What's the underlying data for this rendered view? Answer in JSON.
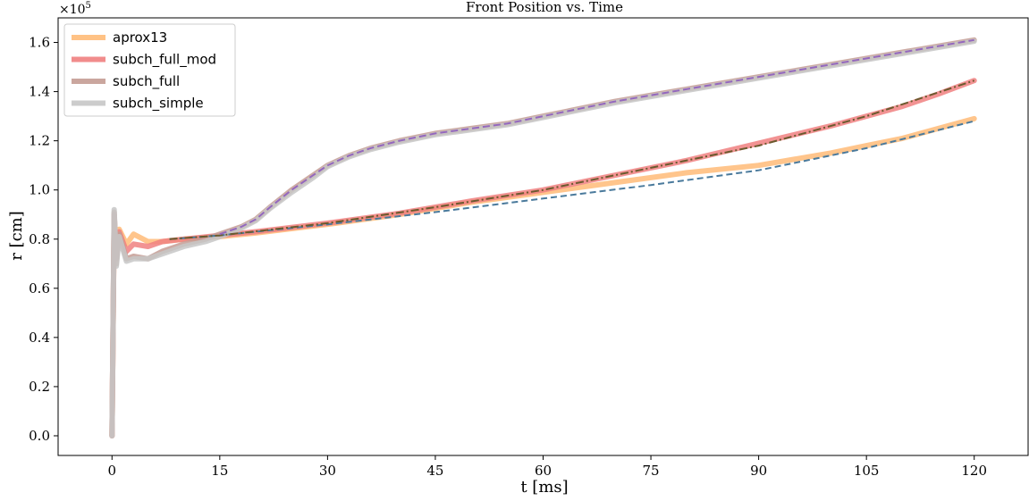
{
  "chart_data": {
    "type": "line",
    "title": "Front Position vs. Time",
    "xlabel": "t [ms]",
    "ylabel": "r [cm]",
    "y_multiplier_label": "×10",
    "y_multiplier_exp": "5",
    "xlim": [
      -7.5,
      127.5
    ],
    "ylim": [
      -0.08,
      1.7
    ],
    "x_ticks": [
      0,
      15,
      30,
      45,
      60,
      75,
      90,
      105,
      120
    ],
    "x_tick_labels": [
      "0",
      "15",
      "30",
      "45",
      "60",
      "75",
      "90",
      "105",
      "120"
    ],
    "y_ticks": [
      0.0,
      0.2,
      0.4,
      0.6,
      0.8,
      1.0,
      1.2,
      1.4,
      1.6
    ],
    "y_tick_labels": [
      "0.0",
      "0.2",
      "0.4",
      "0.6",
      "0.8",
      "1.0",
      "1.2",
      "1.4",
      "1.6"
    ],
    "grid": false,
    "legend_position": "top-left",
    "series": [
      {
        "name": "aprox13",
        "color": "#ffbb78",
        "x": [
          0,
          0.3,
          0.6,
          1,
          2,
          3,
          5,
          7,
          10,
          15,
          20,
          30,
          40,
          50,
          60,
          70,
          80,
          90,
          100,
          105,
          110,
          115,
          120
        ],
        "y": [
          0.0,
          0.88,
          0.76,
          0.84,
          0.78,
          0.82,
          0.79,
          0.79,
          0.8,
          0.81,
          0.825,
          0.86,
          0.9,
          0.95,
          0.99,
          1.03,
          1.07,
          1.1,
          1.15,
          1.18,
          1.21,
          1.25,
          1.29
        ]
      },
      {
        "name": "subch_full_mod",
        "color": "#f08080",
        "x": [
          0,
          0.3,
          0.6,
          1,
          2,
          3,
          5,
          7,
          10,
          15,
          20,
          30,
          40,
          50,
          60,
          70,
          80,
          90,
          100,
          105,
          110,
          115,
          120
        ],
        "y": [
          0.0,
          0.9,
          0.72,
          0.83,
          0.75,
          0.78,
          0.77,
          0.79,
          0.8,
          0.815,
          0.83,
          0.865,
          0.905,
          0.955,
          1.0,
          1.06,
          1.12,
          1.19,
          1.26,
          1.3,
          1.34,
          1.39,
          1.445
        ]
      },
      {
        "name": "subch_full",
        "color": "#c49c94",
        "x": [
          0,
          0.3,
          0.6,
          1,
          2,
          3,
          5,
          7,
          10,
          13,
          15,
          18,
          20,
          22,
          25,
          28,
          30,
          33,
          36,
          40,
          45,
          50,
          55,
          60,
          70,
          80,
          90,
          100,
          110,
          120
        ],
        "y": [
          0.0,
          0.91,
          0.7,
          0.82,
          0.72,
          0.73,
          0.72,
          0.75,
          0.78,
          0.8,
          0.82,
          0.85,
          0.88,
          0.93,
          1.0,
          1.06,
          1.1,
          1.14,
          1.17,
          1.2,
          1.23,
          1.25,
          1.27,
          1.3,
          1.36,
          1.41,
          1.46,
          1.51,
          1.56,
          1.61
        ]
      },
      {
        "name": "subch_simple",
        "color": "#c7c7c7",
        "x": [
          0,
          0.3,
          0.6,
          1,
          2,
          3,
          5,
          7,
          10,
          13,
          15,
          18,
          20,
          22,
          25,
          28,
          30,
          33,
          36,
          40,
          45,
          50,
          55,
          60,
          70,
          80,
          90,
          100,
          110,
          120
        ],
        "y": [
          0.0,
          0.92,
          0.69,
          0.81,
          0.71,
          0.72,
          0.72,
          0.74,
          0.77,
          0.79,
          0.81,
          0.845,
          0.875,
          0.925,
          0.99,
          1.05,
          1.095,
          1.135,
          1.165,
          1.195,
          1.225,
          1.245,
          1.265,
          1.295,
          1.355,
          1.405,
          1.455,
          1.505,
          1.555,
          1.605
        ]
      }
    ],
    "fit_lines": [
      {
        "color": "#4a7a9c",
        "dash": "7,4",
        "x": [
          8,
          15,
          30,
          45,
          60,
          75,
          90,
          105,
          120
        ],
        "y": [
          0.8,
          0.815,
          0.86,
          0.91,
          0.965,
          1.02,
          1.08,
          1.17,
          1.28
        ]
      },
      {
        "color": "#6b5a2e",
        "dash": "9,3,2,3",
        "x": [
          8,
          15,
          30,
          45,
          60,
          75,
          90,
          105,
          120
        ],
        "y": [
          0.8,
          0.815,
          0.865,
          0.93,
          1.0,
          1.09,
          1.18,
          1.3,
          1.445
        ]
      },
      {
        "color": "#9467bd",
        "dash": "8,4",
        "x": [
          15,
          18,
          20,
          22,
          25,
          28,
          30,
          33,
          36,
          40,
          45,
          50,
          55,
          60,
          70,
          80,
          90,
          100,
          110,
          120
        ],
        "y": [
          0.82,
          0.85,
          0.88,
          0.93,
          1.0,
          1.06,
          1.1,
          1.14,
          1.17,
          1.2,
          1.23,
          1.25,
          1.27,
          1.3,
          1.36,
          1.41,
          1.46,
          1.51,
          1.56,
          1.61
        ]
      }
    ]
  }
}
